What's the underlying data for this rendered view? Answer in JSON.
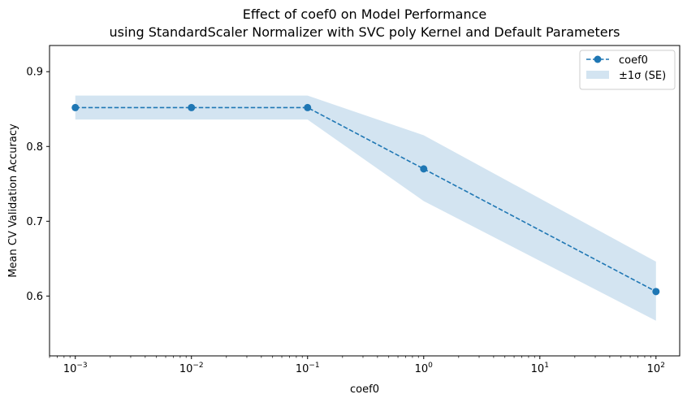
{
  "chart_data": {
    "type": "line",
    "title": "Effect of coef0 on Model Performance",
    "subtitle": "using StandardScaler Normalizer with SVC poly Kernel and Default Parameters",
    "xlabel": "coef0",
    "ylabel": "Mean CV Validation Accuracy",
    "x_scale": "log",
    "x": [
      0.001,
      0.01,
      0.1,
      1,
      100
    ],
    "xlim": [
      0.0006,
      160
    ],
    "ylim": [
      0.52,
      0.935
    ],
    "x_ticks": [
      {
        "value": 0.001,
        "base": "10",
        "exp": "−3"
      },
      {
        "value": 0.01,
        "base": "10",
        "exp": "−2"
      },
      {
        "value": 0.1,
        "base": "10",
        "exp": "−1"
      },
      {
        "value": 1,
        "base": "10",
        "exp": "0"
      },
      {
        "value": 10,
        "base": "10",
        "exp": "1"
      },
      {
        "value": 100,
        "base": "10",
        "exp": "2"
      }
    ],
    "y_ticks": [
      {
        "value": 0.6,
        "label": "0.6"
      },
      {
        "value": 0.7,
        "label": "0.7"
      },
      {
        "value": 0.8,
        "label": "0.8"
      },
      {
        "value": 0.9,
        "label": "0.9"
      }
    ],
    "series": [
      {
        "name": "coef0",
        "values": [
          0.852,
          0.852,
          0.852,
          0.77,
          0.606
        ],
        "upper": [
          0.868,
          0.868,
          0.868,
          0.815,
          0.646
        ],
        "lower": [
          0.836,
          0.836,
          0.836,
          0.727,
          0.567
        ],
        "color": "#1f77b4",
        "band_name": "±1σ (SE)",
        "band_color": "#aecde5"
      }
    ],
    "grid": false,
    "legend_position": "top-right"
  }
}
